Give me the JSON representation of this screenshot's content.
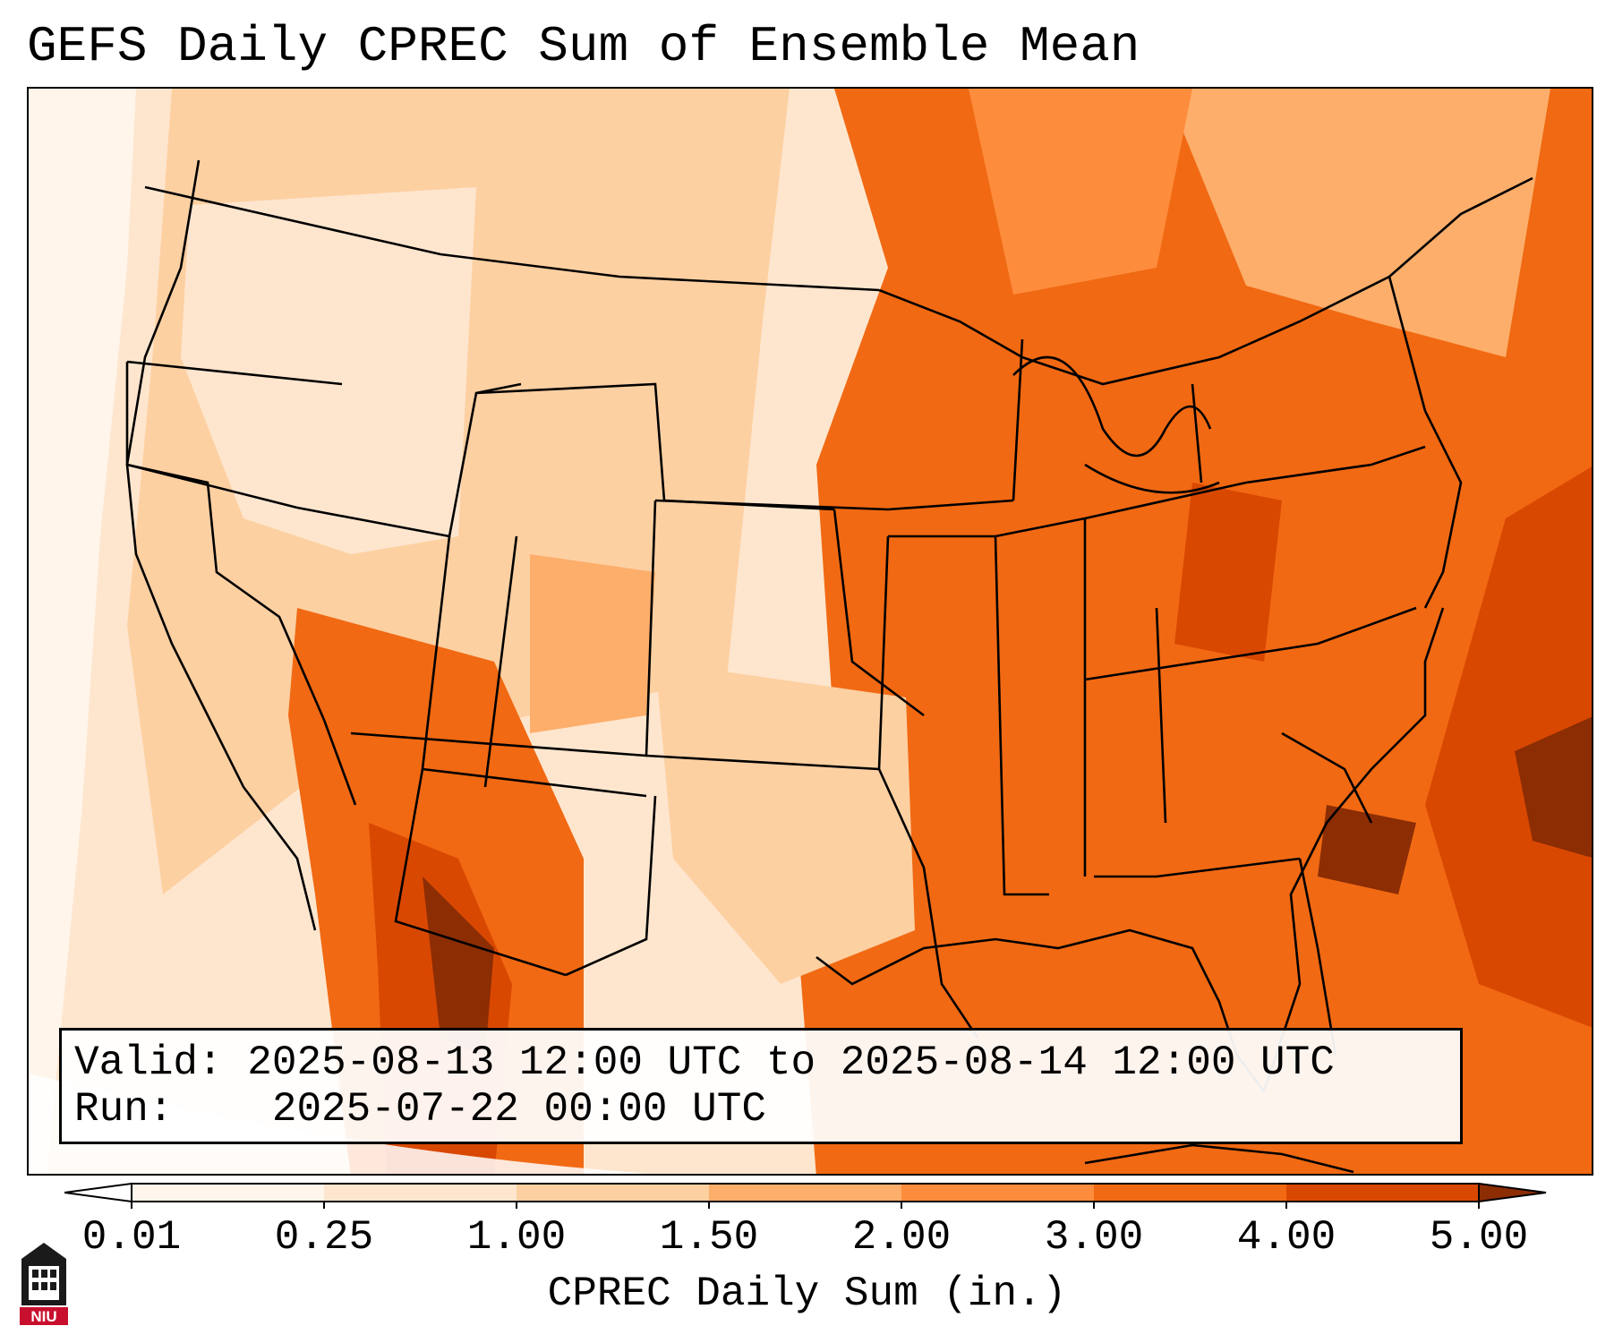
{
  "title": "GEFS Daily CPREC Sum of Ensemble Mean",
  "info": {
    "valid_label": "Valid:",
    "valid_value": "2025-08-13 12:00 UTC to 2025-08-14 12:00 UTC",
    "run_label": "Run:",
    "run_value": "2025-07-22 00:00 UTC"
  },
  "colorbar": {
    "label": "CPREC Daily Sum (in.)",
    "ticks": [
      "0.01",
      "0.25",
      "1.00",
      "1.50",
      "2.00",
      "3.00",
      "4.00",
      "5.00"
    ],
    "colors": [
      "#fff5eb",
      "#fee6ce",
      "#fdd0a2",
      "#fdae6b",
      "#fd8d3c",
      "#f16913",
      "#d94801",
      "#8c2d04"
    ],
    "extend": "both"
  },
  "logo": {
    "text": "NIU",
    "icon": "university-tower-icon",
    "color": "#c8102e"
  }
}
